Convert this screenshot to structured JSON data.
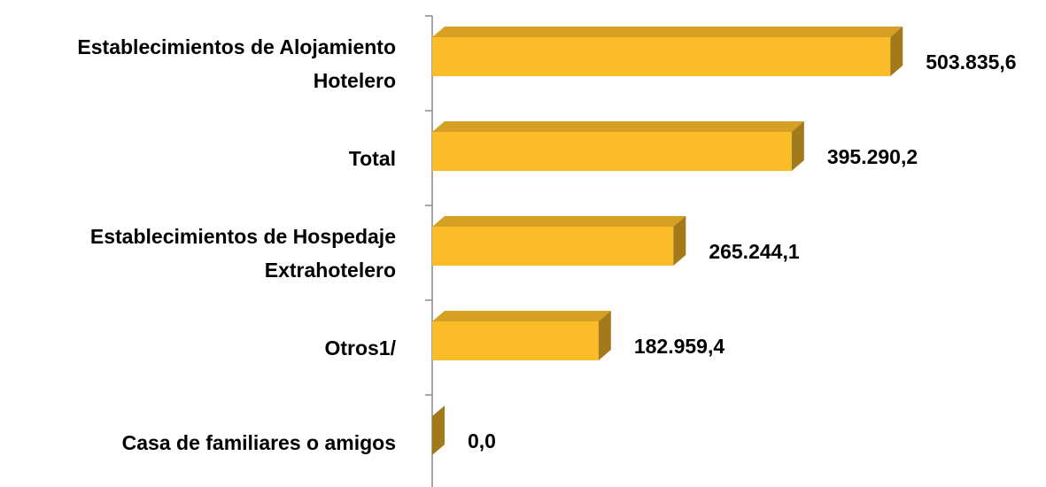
{
  "chart_data": {
    "type": "bar",
    "orientation": "horizontal",
    "categories": [
      "Establecimientos de Alojamiento Hotelero",
      "Total",
      "Establecimientos de Hospedaje Extrahotelero",
      "Otros1/",
      "Casa de familiares o amigos"
    ],
    "values": [
      503835.6,
      395290.2,
      265244.1,
      182959.4,
      0.0
    ],
    "value_labels": [
      "503.835,6",
      "395.290,2",
      "265.244,1",
      "182.959,4",
      "0,0"
    ],
    "color": "#fbbc2a",
    "xlim": [
      0,
      600000
    ]
  }
}
